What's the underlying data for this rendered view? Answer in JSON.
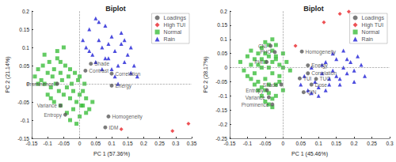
{
  "chart_data": [
    {
      "type": "scatter",
      "title": "Biplot",
      "x_label": "PC 1 (57.36%)",
      "y_label": "PC 2 (21.14%)",
      "xlim": [
        -0.15,
        0.35
      ],
      "xticks": [
        -0.15,
        -0.1,
        -0.05,
        0,
        0.05,
        0.1,
        0.15,
        0.2,
        0.25,
        0.3,
        0.35
      ],
      "ylim": [
        -0.15,
        0.2
      ],
      "yticks": [
        -0.15,
        -0.1,
        -0.05,
        0,
        0.05,
        0.1,
        0.15,
        0.2
      ],
      "grid": false,
      "legend": "northeast",
      "series": [
        {
          "name": "Loadings",
          "color": "#5a5a5a",
          "marker": "circle",
          "labels": [
            "Contrast",
            "Shade",
            "Correlation",
            "Energy",
            "Prominence",
            "Variance",
            "Entropy",
            "Homogeneity",
            "IDM"
          ],
          "x": [
            0.018,
            0.035,
            0.1,
            0.1,
            -0.07,
            -0.06,
            -0.045,
            0.09,
            0.08
          ],
          "y": [
            0.036,
            0.055,
            0.028,
            -0.005,
            0,
            -0.06,
            -0.085,
            -0.09,
            -0.12
          ]
        },
        {
          "name": "High TUI",
          "color": "#e8262b",
          "marker": "diamond",
          "x": [
            0.13,
            0.29,
            0.34
          ],
          "y": [
            -0.125,
            -0.13,
            -0.11
          ]
        },
        {
          "name": "Normal",
          "color": "#3cbe3c",
          "marker": "square",
          "x": [
            -0.14,
            -0.13,
            -0.12,
            -0.115,
            -0.11,
            -0.1,
            -0.095,
            -0.09,
            -0.085,
            -0.08,
            -0.075,
            -0.07,
            -0.065,
            -0.06,
            -0.055,
            -0.05,
            -0.045,
            -0.04,
            -0.035,
            -0.03,
            -0.025,
            -0.02,
            -0.015,
            -0.01,
            -0.005,
            0.0,
            0.005,
            0.01,
            0.015,
            0.02,
            0.03,
            0.04,
            -0.13,
            -0.1,
            -0.08,
            -0.06,
            -0.04,
            -0.02,
            0.0,
            0.02,
            -0.11,
            -0.07,
            -0.05,
            -0.03,
            -0.01,
            0.01,
            -0.09,
            -0.06,
            -0.03,
            0.0
          ],
          "y": [
            0.02,
            0.04,
            0.01,
            0.05,
            0.0,
            0.03,
            0.06,
            -0.01,
            0.02,
            0.04,
            0.0,
            0.07,
            -0.02,
            0.03,
            0.01,
            -0.03,
            0.05,
            -0.01,
            0.02,
            -0.04,
            0.0,
            -0.02,
            0.03,
            -0.05,
            0.01,
            -0.03,
            -0.06,
            -0.02,
            0.0,
            -0.04,
            -0.07,
            -0.05,
            0.0,
            -0.03,
            -0.05,
            -0.06,
            -0.08,
            -0.07,
            -0.09,
            -0.08,
            0.08,
            0.09,
            0.1,
            -0.1,
            -0.11,
            -0.06,
            -0.04,
            0.06,
            0.04,
            0.02
          ]
        },
        {
          "name": "Rain",
          "color": "#1f1fd6",
          "marker": "triangle",
          "x": [
            0.01,
            0.02,
            0.03,
            0.04,
            0.05,
            0.06,
            0.07,
            0.08,
            0.09,
            0.1,
            0.11,
            0.12,
            0.13,
            0.14,
            0.15,
            0.16,
            0.17,
            0.18,
            0.05,
            0.07,
            0.09,
            0.11,
            0.13,
            0.06,
            0.08,
            0.1,
            0.12,
            0.03,
            0.14,
            0.16
          ],
          "y": [
            0.12,
            0.1,
            0.15,
            0.08,
            0.18,
            0.12,
            0.1,
            0.16,
            0.07,
            0.13,
            0.09,
            0.05,
            0.11,
            0.06,
            0.08,
            0.03,
            0.05,
            0.02,
            0.06,
            0.04,
            0.11,
            0.02,
            0.14,
            0.17,
            0.07,
            0.04,
            0.0,
            0.09,
            0.12,
            0.1
          ]
        }
      ]
    },
    {
      "type": "scatter",
      "title": "Biplot",
      "x_label": "PC 1 (45.46%)",
      "y_label": "PC 2 (28.17%)",
      "xlim": [
        -0.15,
        0.3
      ],
      "xticks": [
        -0.15,
        -0.1,
        -0.05,
        0,
        0.05,
        0.1,
        0.15,
        0.2,
        0.25,
        0.3
      ],
      "ylim": [
        -0.25,
        0.2
      ],
      "yticks": [
        -0.25,
        -0.2,
        -0.15,
        -0.1,
        -0.05,
        0,
        0.05,
        0.1,
        0.15,
        0.2
      ],
      "grid": false,
      "legend": "northeast",
      "series": [
        {
          "name": "Loadings",
          "color": "#5a5a5a",
          "marker": "circle",
          "labels": [
            "CNI",
            "PHO",
            "PHI",
            "Homogeneity",
            "Energy",
            "Correlation",
            "TUI",
            "TUO",
            "Dose",
            "QIN",
            "Shade",
            "Entropy",
            "Variance",
            "Prominence"
          ],
          "x": [
            -0.035,
            -0.023,
            -0.046,
            0.053,
            0.07,
            0.07,
            0.047,
            0.093,
            0.08,
            0.058,
            -0.005,
            -0.045,
            -0.04,
            -0.03
          ],
          "y": [
            0.077,
            0.055,
            0.02,
            0.057,
            0.008,
            -0.02,
            -0.038,
            -0.04,
            -0.06,
            -0.087,
            -0.06,
            -0.08,
            -0.105,
            -0.13
          ]
        },
        {
          "name": "High TUI",
          "color": "#e8262b",
          "marker": "diamond",
          "x": [
            0.035,
            0.115,
            0.16,
            0.185
          ],
          "y": [
            0.077,
            0.16,
            0.19,
            0.198
          ]
        },
        {
          "name": "Normal",
          "color": "#3cbe3c",
          "marker": "square",
          "x": [
            -0.12,
            -0.11,
            -0.1,
            -0.1,
            -0.09,
            -0.09,
            -0.08,
            -0.08,
            -0.07,
            -0.07,
            -0.06,
            -0.06,
            -0.06,
            -0.05,
            -0.05,
            -0.05,
            -0.04,
            -0.04,
            -0.04,
            -0.03,
            -0.03,
            -0.03,
            -0.02,
            -0.02,
            -0.02,
            -0.01,
            -0.01,
            0.0,
            0.0,
            0.01,
            0.02,
            -0.08,
            -0.07,
            -0.06,
            -0.05,
            -0.04,
            -0.03,
            -0.02,
            -0.05,
            -0.04,
            -0.03,
            -0.06,
            -0.07,
            -0.09,
            -0.01,
            0.0,
            -0.02,
            -0.03,
            -0.04,
            -0.05
          ],
          "y": [
            0.02,
            -0.01,
            0.04,
            -0.03,
            0.01,
            0.06,
            -0.02,
            0.03,
            0.05,
            -0.05,
            0.0,
            0.07,
            -0.07,
            0.02,
            0.09,
            -0.04,
            0.04,
            -0.09,
            0.0,
            0.06,
            -0.02,
            -0.11,
            0.03,
            0.08,
            -0.06,
            0.01,
            -0.03,
            0.05,
            -0.08,
            0.02,
            -0.01,
            -0.06,
            -0.08,
            -0.1,
            -0.12,
            -0.13,
            -0.14,
            -0.1,
            0.05,
            0.08,
            0.1,
            0.03,
            0.01,
            -0.04,
            -0.05,
            0.0,
            0.04,
            0.02,
            -0.06,
            -0.08
          ]
        },
        {
          "name": "Rain",
          "color": "#1f1fd6",
          "marker": "triangle",
          "x": [
            0.05,
            0.06,
            0.07,
            0.08,
            0.09,
            0.1,
            0.11,
            0.12,
            0.13,
            0.14,
            0.15,
            0.16,
            0.17,
            0.18,
            0.19,
            0.2,
            0.21,
            0.22,
            0.23,
            0.1,
            0.12,
            0.14,
            0.16,
            0.18,
            0.08,
            0.11,
            0.15,
            0.2,
            0.13,
            0.17
          ],
          "y": [
            -0.06,
            -0.03,
            -0.08,
            0.0,
            -0.05,
            -0.1,
            -0.02,
            0.02,
            -0.06,
            -0.01,
            0.03,
            -0.04,
            0.0,
            -0.02,
            0.02,
            -0.01,
            0.04,
            0.01,
            -0.03,
            -0.07,
            -0.08,
            0.05,
            -0.06,
            0.03,
            -0.09,
            0.01,
            -0.03,
            -0.05,
            -0.04,
            0.06
          ]
        }
      ]
    }
  ]
}
